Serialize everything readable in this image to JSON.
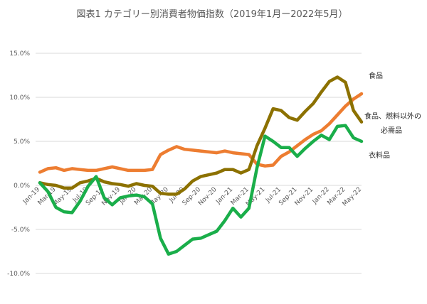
{
  "chart_data": {
    "type": "line",
    "title": "図表1 カテゴリー別消費者物価指数（2019年1月ー2022年5月）",
    "xlabel": "",
    "ylabel": "",
    "ylim": [
      -0.1,
      0.15
    ],
    "yticks": [
      -0.1,
      -0.05,
      0.0,
      0.05,
      0.1,
      0.15
    ],
    "ytick_labels": [
      "-10.0%",
      "-5.0%",
      "0.0%",
      "5.0%",
      "10.0%",
      "15.0%"
    ],
    "grid": true,
    "legend": "inline-right",
    "categories": [
      "Jan-19",
      "Feb-19",
      "Mar-19",
      "Apr-19",
      "May-19",
      "Jun-19",
      "Jul-19",
      "Aug-19",
      "Sep-19",
      "Oct-19",
      "Nov-19",
      "Dec-19",
      "Jan-20",
      "Feb-20",
      "Mar-20",
      "Apr-20",
      "May-20",
      "Jun-20",
      "Jul-20",
      "Aug-20",
      "Sep-20",
      "Oct-20",
      "Nov-20",
      "Dec-20",
      "Jan-21",
      "Feb-21",
      "Mar-21",
      "Apr-21",
      "May-21",
      "Jun-21",
      "Jul-21",
      "Aug-21",
      "Sep-21",
      "Oct-21",
      "Nov-21",
      "Dec-21",
      "Jan-22",
      "Feb-22",
      "Mar-22",
      "Apr-22",
      "May-22"
    ],
    "xtick_every": 2,
    "xtick_labels": [
      "Jan-19",
      "Mar-19",
      "May-19",
      "Jul-19",
      "Sep-19",
      "Nov-19",
      "Jan-20",
      "Mar-20",
      "May-20",
      "Jul-20",
      "Sep-20",
      "Nov-20",
      "Jan-21",
      "Mar-21",
      "May-21",
      "Jul-21",
      "Sep-21",
      "Nov-21",
      "Jan-22",
      "Mar-22",
      "May-22"
    ],
    "series": [
      {
        "name": "食品",
        "color": "#ED7D31",
        "values": [
          0.015,
          0.019,
          0.02,
          0.017,
          0.019,
          0.018,
          0.017,
          0.017,
          0.019,
          0.021,
          0.019,
          0.017,
          0.017,
          0.017,
          0.018,
          0.035,
          0.04,
          0.044,
          0.041,
          0.04,
          0.039,
          0.038,
          0.037,
          0.039,
          0.037,
          0.036,
          0.035,
          0.024,
          0.022,
          0.023,
          0.033,
          0.038,
          0.045,
          0.052,
          0.058,
          0.062,
          0.07,
          0.08,
          0.09,
          0.098,
          0.104
        ]
      },
      {
        "name": "食品、燃料以外の必需品",
        "color": "#8C7100",
        "values": [
          0.003,
          0.001,
          0.0,
          -0.003,
          -0.003,
          0.003,
          0.005,
          0.008,
          0.004,
          0.002,
          0.001,
          -0.001,
          0.002,
          0.0,
          -0.001,
          -0.009,
          -0.01,
          -0.01,
          -0.004,
          0.005,
          0.01,
          0.012,
          0.014,
          0.018,
          0.018,
          0.014,
          0.018,
          0.045,
          0.065,
          0.087,
          0.085,
          0.077,
          0.074,
          0.084,
          0.093,
          0.106,
          0.118,
          0.123,
          0.117,
          0.085,
          0.072
        ]
      },
      {
        "name": "衣料品",
        "color": "#1AAE4A",
        "values": [
          0.003,
          -0.007,
          -0.025,
          -0.03,
          -0.031,
          -0.018,
          -0.001,
          0.01,
          -0.014,
          -0.022,
          -0.014,
          -0.012,
          -0.011,
          -0.013,
          -0.021,
          -0.06,
          -0.078,
          -0.075,
          -0.068,
          -0.061,
          -0.06,
          -0.056,
          -0.052,
          -0.04,
          -0.026,
          -0.036,
          -0.026,
          0.02,
          0.056,
          0.05,
          0.043,
          0.043,
          0.033,
          0.042,
          0.05,
          0.057,
          0.052,
          0.067,
          0.068,
          0.054,
          0.05
        ]
      }
    ],
    "labels": [
      {
        "text": "食品",
        "series": 0
      },
      {
        "text": "食品、燃料以外の",
        "series": 1
      },
      {
        "text": "必需品",
        "series": 1
      },
      {
        "text": "衣料品",
        "series": 2
      }
    ]
  }
}
